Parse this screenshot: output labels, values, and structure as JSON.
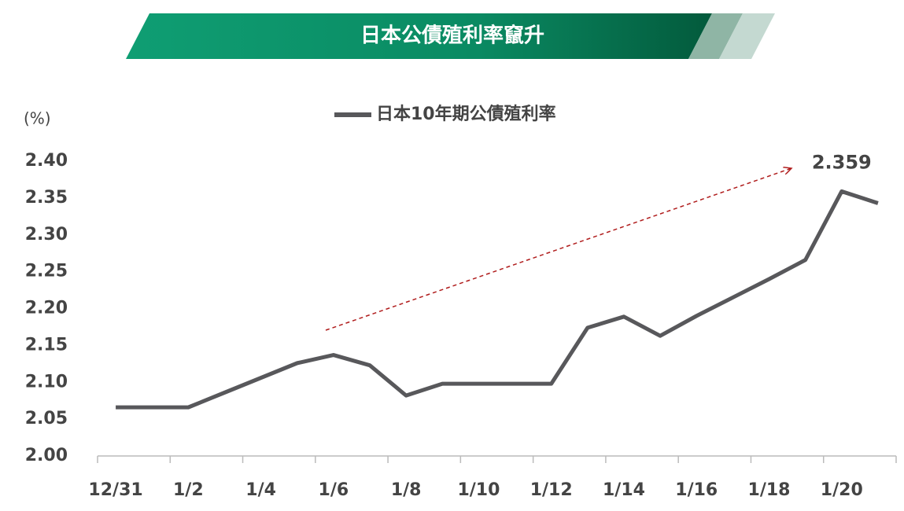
{
  "chart_data": {
    "type": "line",
    "title": "日本公債殖利率竄升",
    "y_unit": "(%)",
    "categories": [
      "12/31",
      null,
      "1/2",
      null,
      "1/4",
      null,
      "1/6",
      null,
      "1/8",
      null,
      "1/10",
      null,
      "1/12",
      null,
      "1/14",
      null,
      "1/16",
      null,
      "1/18",
      null,
      "1/20",
      null
    ],
    "series": [
      {
        "name": "日本10年期公債殖利率",
        "color": "#58585b",
        "values": [
          2.066,
          2.066,
          2.066,
          2.086,
          2.106,
          2.126,
          2.137,
          2.123,
          2.082,
          2.098,
          2.098,
          2.098,
          2.098,
          2.174,
          2.189,
          2.163,
          2.19,
          2.215,
          2.24,
          2.266,
          2.359,
          2.343
        ]
      }
    ],
    "ylim": [
      2.0,
      2.4
    ],
    "yticks": [
      {
        "value": 2.0,
        "label": "2.00"
      },
      {
        "value": 2.05,
        "label": "2.05"
      },
      {
        "value": 2.1,
        "label": "2.10"
      },
      {
        "value": 2.15,
        "label": "2.15"
      },
      {
        "value": 2.2,
        "label": "2.20"
      },
      {
        "value": 2.25,
        "label": "2.25"
      },
      {
        "value": 2.3,
        "label": "2.30"
      },
      {
        "value": 2.35,
        "label": "2.35"
      },
      {
        "value": 2.4,
        "label": "2.40"
      }
    ],
    "grid": false,
    "legend": "top"
  }
}
